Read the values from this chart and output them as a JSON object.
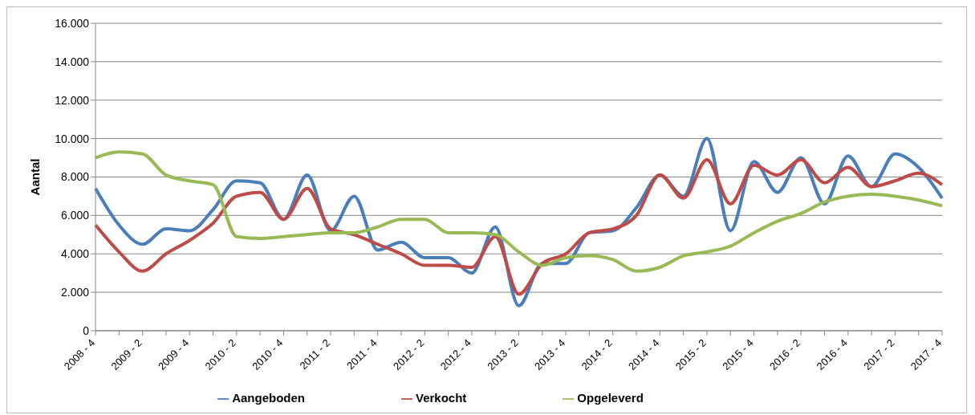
{
  "chart_data": {
    "type": "line",
    "ylabel": "Aantal",
    "categories": [
      "2008 - 4",
      null,
      "2009 - 2",
      null,
      "2009 - 4",
      null,
      "2010 - 2",
      null,
      "2010 - 4",
      null,
      "2011 - 2",
      null,
      "2011 - 4",
      null,
      "2012 - 2",
      null,
      "2012 - 4",
      null,
      "2013 - 2",
      null,
      "2013 - 4",
      null,
      "2014 - 2",
      null,
      "2014 - 4",
      null,
      "2015 - 2",
      null,
      "2015 - 4",
      null,
      "2016 - 2",
      null,
      "2016 - 4",
      null,
      "2017 - 2",
      null,
      "2017 - 4"
    ],
    "series": [
      {
        "name": "Aangeboden",
        "color": "#4a7ebb",
        "values": [
          7400,
          5500,
          4500,
          5300,
          5200,
          6300,
          7800,
          7700,
          5800,
          8100,
          5200,
          7000,
          4200,
          4600,
          3800,
          3800,
          3000,
          5400,
          1300,
          3500,
          3500,
          5100,
          5200,
          6400,
          8100,
          7000,
          10000,
          5200,
          8800,
          7200,
          9000,
          6600,
          9100,
          7500,
          9200,
          8500,
          6900
        ]
      },
      {
        "name": "Verkocht",
        "color": "#be4b48",
        "values": [
          5500,
          4100,
          3100,
          4000,
          4700,
          5600,
          7000,
          7200,
          5800,
          7400,
          5300,
          5000,
          4500,
          4000,
          3400,
          3400,
          3300,
          4900,
          1900,
          3500,
          4000,
          5100,
          5300,
          6000,
          8100,
          6900,
          8900,
          6600,
          8600,
          8100,
          8900,
          7700,
          8500,
          7500,
          7800,
          8200,
          7600
        ]
      },
      {
        "name": "Opgeleverd",
        "color": "#98b954",
        "values": [
          9000,
          9300,
          9200,
          8100,
          7800,
          7600,
          4900,
          4800,
          4900,
          5000,
          5100,
          5100,
          5400,
          5800,
          5800,
          5100,
          5100,
          5000,
          4100,
          3400,
          3800,
          3900,
          3700,
          3100,
          3300,
          3900,
          4100,
          4400,
          5100,
          5700,
          6100,
          6700,
          7000,
          7100,
          7000,
          6800,
          6500
        ]
      }
    ],
    "ylim": [
      0,
      16000
    ],
    "yticks": [
      0,
      {
        "value": 2000,
        "label": "2.000"
      },
      {
        "value": 4000,
        "label": "4.000"
      },
      {
        "value": 6000,
        "label": "6.000"
      },
      {
        "value": 8000,
        "label": "8.000"
      },
      {
        "value": 10000,
        "label": "10.000"
      },
      {
        "value": 12000,
        "label": "12.000"
      },
      {
        "value": 14000,
        "label": "14.000"
      },
      {
        "value": 16000,
        "label": "16.000"
      }
    ],
    "grid": "y",
    "legend": "bottom",
    "marker": "none",
    "line_style": "solid"
  }
}
